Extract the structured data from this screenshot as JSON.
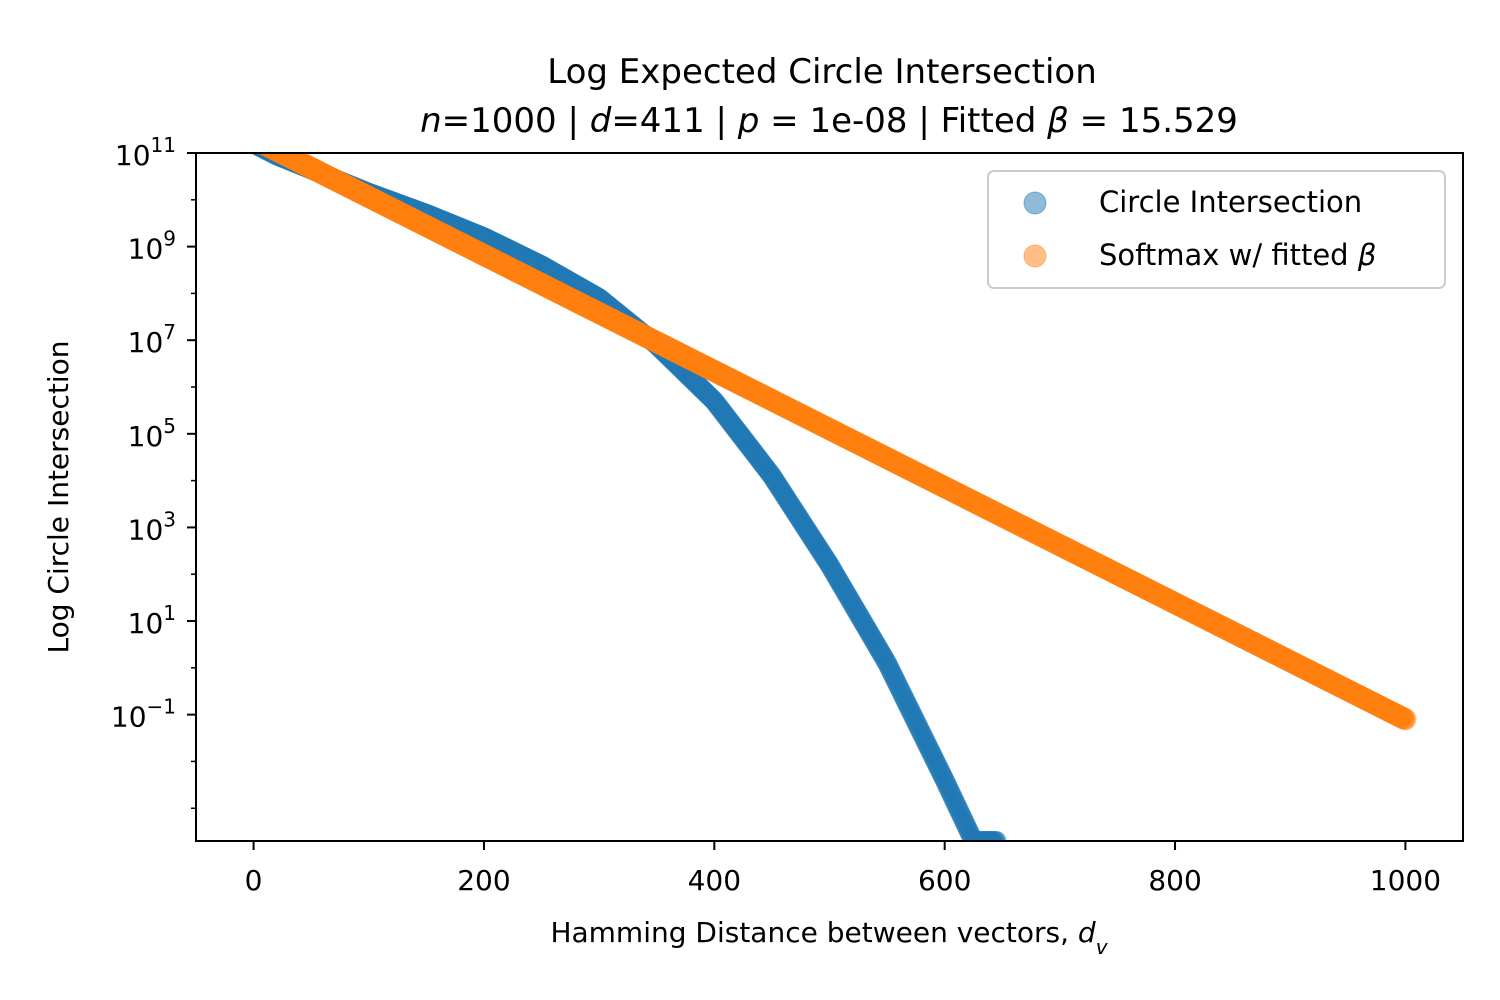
{
  "chart_data": {
    "type": "scatter",
    "title": "Log Expected Circle Intersection",
    "subtitle": "n=1000 | d=411 | p = 1e-08 | Fitted β = 15.529",
    "subtitle_parts": [
      {
        "text": "n",
        "italic": true
      },
      {
        "text": "=1000 | ",
        "italic": false
      },
      {
        "text": "d",
        "italic": true
      },
      {
        "text": "=411 | ",
        "italic": false
      },
      {
        "text": "p",
        "italic": true
      },
      {
        "text": " = 1e-08 | Fitted ",
        "italic": false
      },
      {
        "text": "β",
        "italic": true
      },
      {
        "text": " = 15.529",
        "italic": false
      }
    ],
    "xlabel": "Hamming Distance between vectors, d_v",
    "xlabel_parts": [
      {
        "text": "Hamming Distance between vectors, ",
        "italic": false
      },
      {
        "text": "d",
        "italic": true
      },
      {
        "text": "v",
        "italic": true,
        "sub": true
      }
    ],
    "ylabel": "Log Circle Intersection",
    "x_scale": "linear",
    "y_scale": "log",
    "xlim": [
      -50,
      1050
    ],
    "ylim_log10": [
      -3.7,
      11.0
    ],
    "x_ticks": [
      0,
      200,
      400,
      600,
      800,
      1000
    ],
    "x_tick_labels": [
      "0",
      "200",
      "400",
      "600",
      "800",
      "1000"
    ],
    "y_ticks_log10": [
      11,
      9,
      7,
      5,
      3,
      1,
      -1
    ],
    "y_tick_labels": [
      {
        "base": "10",
        "exp": "11"
      },
      {
        "base": "10",
        "exp": "9"
      },
      {
        "base": "10",
        "exp": "7"
      },
      {
        "base": "10",
        "exp": "5"
      },
      {
        "base": "10",
        "exp": "3"
      },
      {
        "base": "10",
        "exp": "1"
      },
      {
        "base": "10",
        "exp": "−1"
      }
    ],
    "grid": false,
    "legend_position": "top-right",
    "series": [
      {
        "name": "Circle Intersection",
        "color": "#1f77b4",
        "x": [
          0,
          20,
          40,
          60,
          80,
          100,
          150,
          200,
          250,
          300,
          350,
          400,
          450,
          500,
          550,
          600,
          625,
          645
        ],
        "log10_y": [
          11.2,
          10.95,
          10.75,
          10.55,
          10.35,
          10.15,
          9.7,
          9.2,
          8.6,
          7.9,
          6.9,
          5.7,
          4.1,
          2.2,
          0.1,
          -2.4,
          -3.7,
          -3.7
        ]
      },
      {
        "name": "Softmax w/ fitted β",
        "color": "#ff7f0e",
        "x_start": 0,
        "x_end": 1000,
        "log10_y_start": 11.3,
        "log10_y_end": -1.1
      }
    ]
  },
  "legend": {
    "label_1": "Circle Intersection",
    "label_2_prefix": "Softmax w/ fitted ",
    "label_2_symbol": "β"
  }
}
